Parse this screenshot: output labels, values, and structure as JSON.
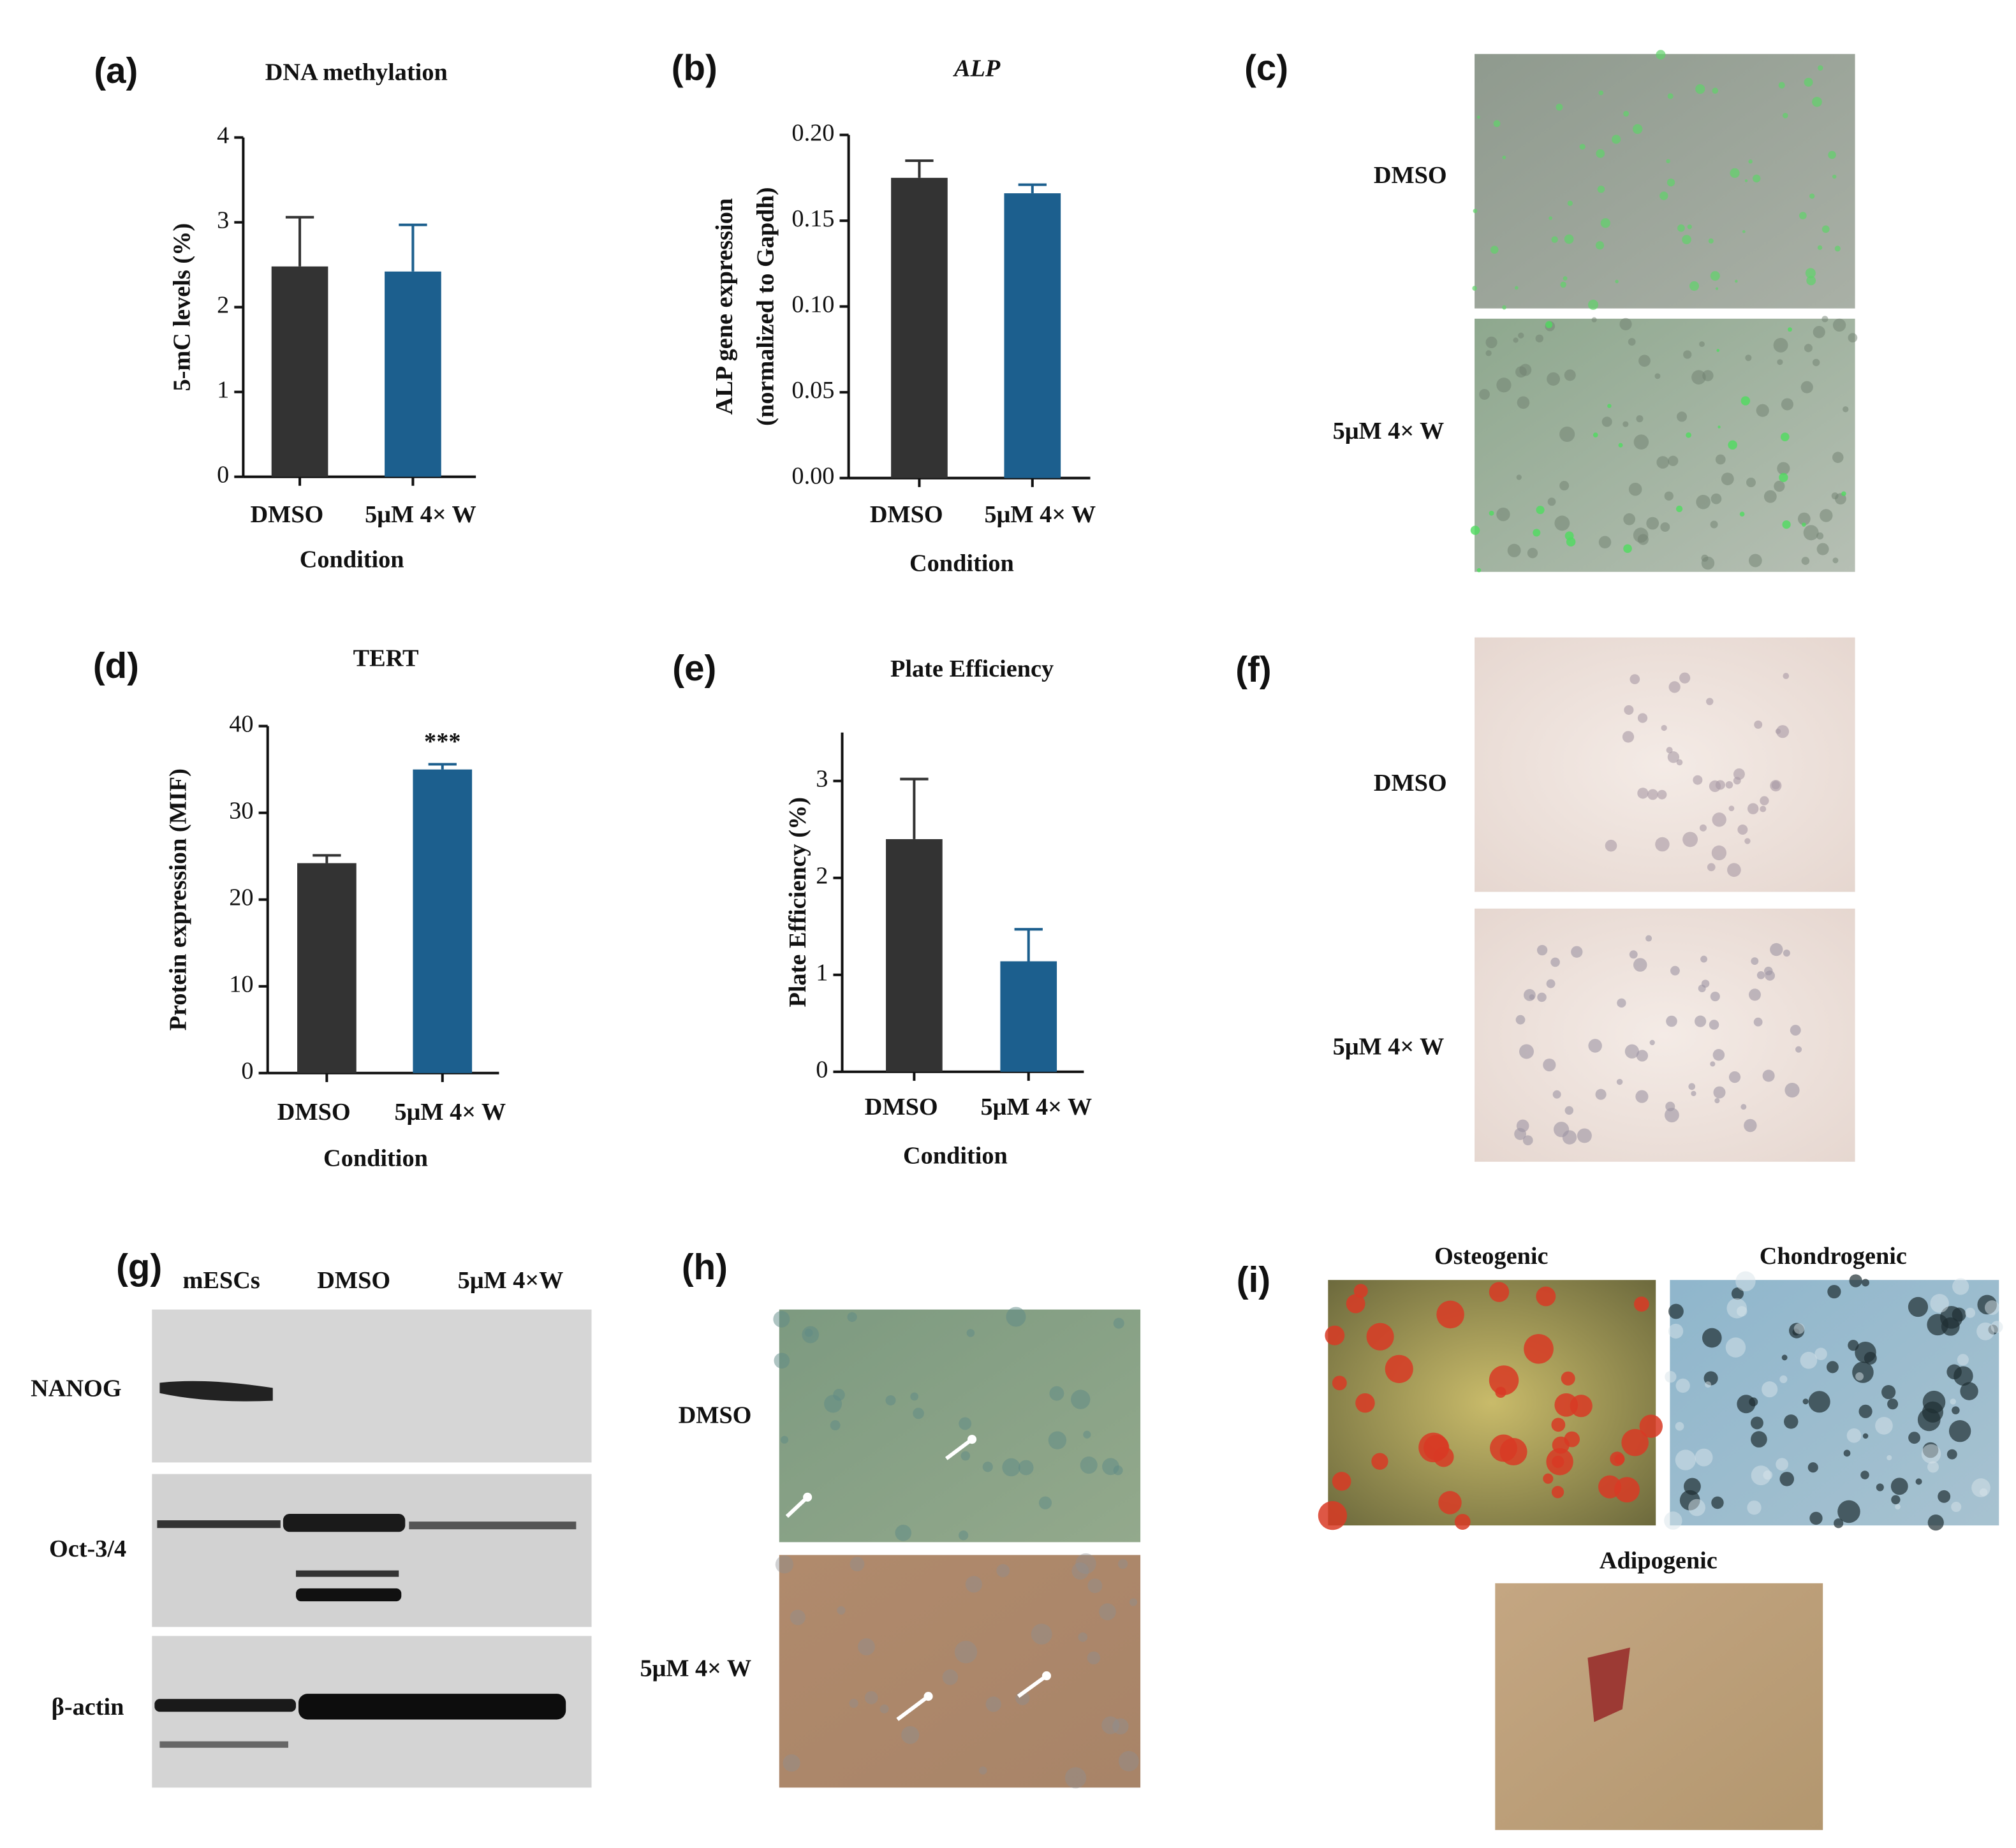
{
  "chart_data": [
    {
      "type": "bar",
      "panel_label": "(a)",
      "title": "DNA methylation",
      "ylabel": "5-mC levels (%)",
      "xlabel": "Condition",
      "categories": [
        "DMSO",
        "5μM 4× W"
      ],
      "values": [
        2.48,
        2.42
      ],
      "errors": [
        0.58,
        0.55
      ],
      "colors": [
        "#333333",
        "#1c5f8e"
      ],
      "ylim": [
        0,
        4
      ],
      "yticks": [
        0,
        1,
        2,
        3,
        4
      ]
    },
    {
      "type": "bar",
      "panel_label": "(b)",
      "title": "ALP",
      "title_style": "italic",
      "ylabel": [
        "ALP gene expression",
        "(normalized to Gapdh)"
      ],
      "xlabel": "Condition",
      "categories": [
        "DMSO",
        "5μM 4× W"
      ],
      "values": [
        0.175,
        0.166
      ],
      "errors": [
        0.01,
        0.005
      ],
      "colors": [
        "#333333",
        "#1c5f8e"
      ],
      "ylim": [
        0,
        0.2
      ],
      "yticks": [
        {
          "value": 0,
          "label": "0.00"
        },
        0.05,
        {
          "value": 0.1,
          "label": "0.10"
        },
        0.15,
        {
          "value": 0.2,
          "label": "0.20"
        }
      ]
    },
    {
      "type": "bar",
      "panel_label": "(d)",
      "title": "TERT",
      "ylabel": "Protein expression (MIF)",
      "xlabel": "Condition",
      "categories": [
        "DMSO",
        "5μM 4× W"
      ],
      "values": [
        24.2,
        35.0
      ],
      "errors": [
        0.9,
        0.6
      ],
      "colors": [
        "#333333",
        "#1c5f8e"
      ],
      "ylim": [
        0,
        40
      ],
      "yticks": [
        0,
        10,
        20,
        30,
        40
      ],
      "annotations": [
        {
          "text": "***",
          "category": "5μM 4× W"
        }
      ]
    },
    {
      "type": "bar",
      "panel_label": "(e)",
      "title": "Plate Efficiency",
      "ylabel": "Plate Efficiency (%)",
      "xlabel": "Condition",
      "categories": [
        "DMSO",
        "5μM 4× W"
      ],
      "values": [
        2.4,
        1.14
      ],
      "errors": [
        0.62,
        0.33
      ],
      "colors": [
        "#333333",
        "#1c5f8e"
      ],
      "ylim": [
        0,
        3.5
      ],
      "yticks": [
        0,
        1,
        2,
        3
      ]
    }
  ],
  "image_panels": {
    "c": {
      "label": "(c)",
      "rows": [
        "DMSO",
        "5μM 4× W"
      ]
    },
    "f": {
      "label": "(f)",
      "rows": [
        "DMSO",
        "5μM 4× W"
      ]
    },
    "g": {
      "label": "(g)",
      "lanes": [
        "mESCs",
        "DMSO",
        "5μM 4×W"
      ],
      "rows": [
        "NANOG",
        "Oct-3/4",
        "β-actin"
      ]
    },
    "h": {
      "label": "(h)",
      "rows": [
        "DMSO",
        "5μM 4× W"
      ]
    },
    "i": {
      "label": "(i)",
      "images": [
        "Osteogenic",
        "Chondrogenic",
        "Adipogenic"
      ]
    }
  }
}
